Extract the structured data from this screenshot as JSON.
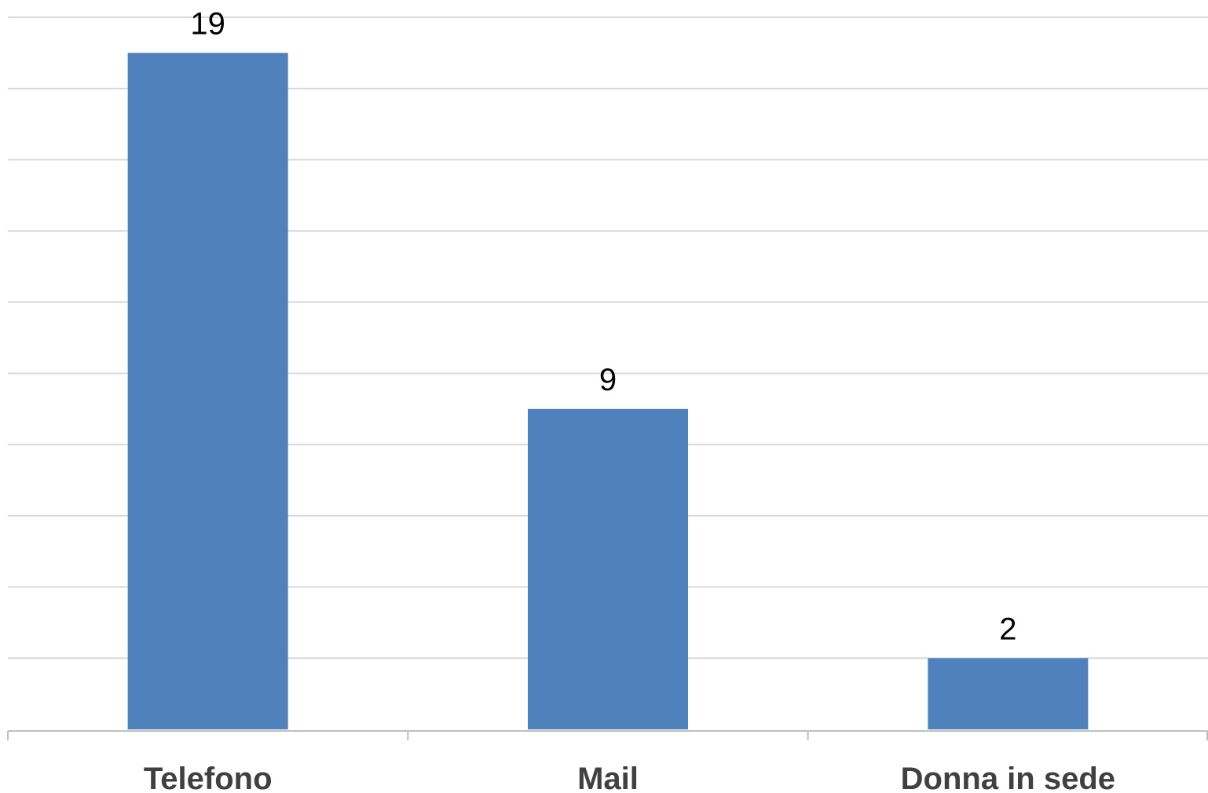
{
  "chart_data": {
    "type": "bar",
    "categories": [
      "Telefono",
      "Mail",
      "Donna in sede"
    ],
    "values": [
      19,
      9,
      2
    ],
    "title": "",
    "xlabel": "",
    "ylabel": "",
    "ylim": [
      0,
      20
    ],
    "grid": true,
    "gridline_step": 2,
    "legend": "none",
    "data_labels": true,
    "colors": {
      "bar": "#4f81bd",
      "grid": "#d9d9d9",
      "axis": "#bfbfbf",
      "label": "#000000",
      "category_label": "#404040"
    }
  }
}
